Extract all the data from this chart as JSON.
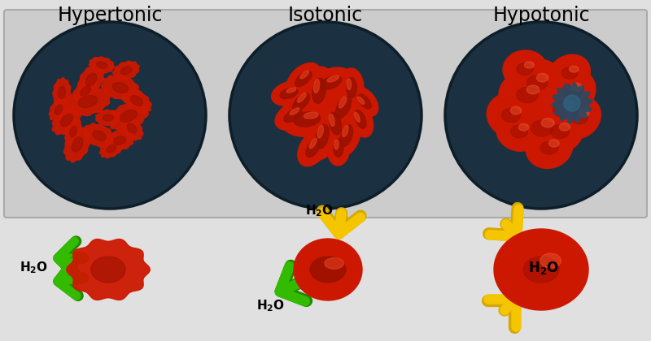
{
  "titles": [
    "Hypertonic",
    "Isotonic",
    "Hypotonic"
  ],
  "bg_color": "#e0e0e0",
  "panel_color": "#d0d0d0",
  "circle_bg": "#1b3040",
  "circle_edge": "#0d1e28",
  "cell_red": "#cc1800",
  "cell_red2": "#dd2200",
  "cell_dark": "#991000",
  "cell_light": "#ee4422",
  "arrow_yellow": "#f5c500",
  "arrow_yellow_dark": "#d4a800",
  "arrow_green": "#33bb00",
  "arrow_green_dark": "#228800",
  "title_fontsize": 17,
  "h2o_fontsize": 11
}
